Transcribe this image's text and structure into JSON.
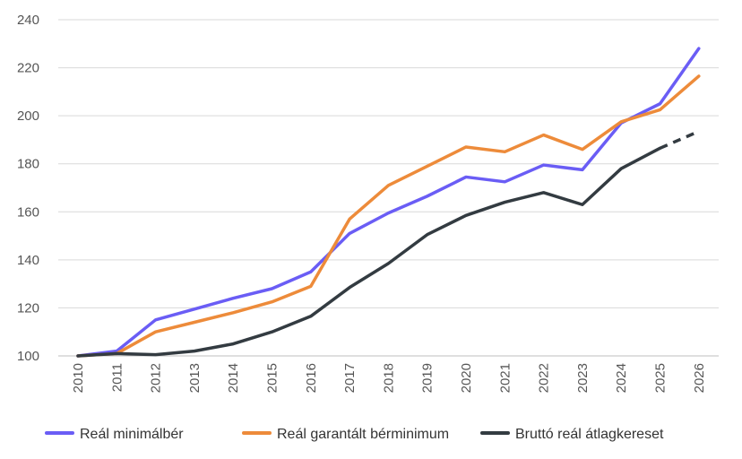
{
  "chart_data": {
    "type": "line",
    "title": "",
    "xlabel": "",
    "ylabel": "",
    "ylim": [
      100,
      240
    ],
    "yticks": [
      "100",
      "120",
      "140",
      "160",
      "180",
      "200",
      "220",
      "240"
    ],
    "categories": [
      "2010",
      "2011",
      "2012",
      "2013",
      "2014",
      "2015",
      "2016",
      "2017",
      "2018",
      "2019",
      "2020",
      "2021",
      "2022",
      "2023",
      "2024",
      "2025",
      "2026"
    ],
    "grid": true,
    "legend": "bottom",
    "series": [
      {
        "name": "Reál minimálbér",
        "color": "#6a5df5",
        "values": [
          100,
          102,
          115,
          119.5,
          124,
          128,
          135,
          151,
          159.5,
          166.5,
          174.5,
          172.5,
          179.5,
          177.5,
          197,
          205,
          228
        ]
      },
      {
        "name": "Reál garantált bérminimum",
        "color": "#ed8b3a",
        "values": [
          100,
          101,
          110,
          114,
          118,
          122.5,
          129,
          157,
          171,
          179,
          187,
          185,
          192,
          186,
          197.5,
          202.5,
          216.5
        ]
      },
      {
        "name": "Bruttó reál átlagkereset",
        "color": "#333b41",
        "values": [
          100,
          101,
          100.5,
          102,
          105,
          110,
          116.5,
          128.5,
          138.5,
          150.5,
          158.5,
          164,
          168,
          163,
          178,
          186.5,
          193.5
        ],
        "dashed_from_index": 15
      }
    ]
  }
}
